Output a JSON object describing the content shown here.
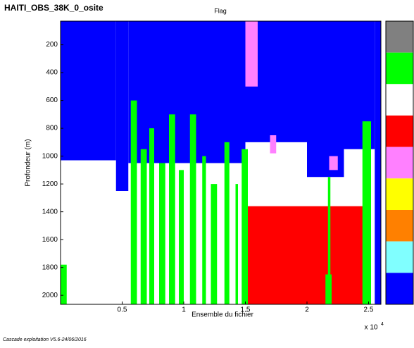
{
  "chart_data": {
    "type": "flag-map",
    "title": "HAITI_OBS_38K_0_osite",
    "subtitle": "Flag",
    "x_label": "Ensemble du fichier",
    "x_multiplier": "x 10",
    "x_multiplier_exponent": "4",
    "y_label": "Profondeur (m)",
    "footer": "Cascade exploitation V5.6-24/06/2016",
    "xlim": [
      0,
      2.6
    ],
    "xticks": [
      0.5,
      1,
      1.5,
      2,
      2.5
    ],
    "ylim": [
      30,
      2065
    ],
    "y_inverted": true,
    "yticks": [
      200,
      400,
      600,
      800,
      1000,
      1200,
      1400,
      1600,
      1800,
      2000
    ],
    "colorbar": [
      "#808080",
      "#00ff00",
      "#ffffff",
      "#ff0000",
      "#ff80ff",
      "#ffff00",
      "#ff8000",
      "#80ffff",
      "#0000ff"
    ],
    "regions": [
      {
        "color": "#0000ff",
        "x": [
          0,
          0.45
        ],
        "depth": [
          30,
          1030
        ]
      },
      {
        "color": "#0000ff",
        "x": [
          0.45,
          0.55
        ],
        "depth": [
          30,
          1250
        ]
      },
      {
        "color": "#0000ff",
        "x": [
          0.55,
          1.5
        ],
        "depth": [
          30,
          1050
        ]
      },
      {
        "color": "#0000ff",
        "x": [
          1.5,
          2.0
        ],
        "depth": [
          30,
          900
        ]
      },
      {
        "color": "#0000ff",
        "x": [
          2.0,
          2.3
        ],
        "depth": [
          30,
          1150
        ]
      },
      {
        "color": "#0000ff",
        "x": [
          2.3,
          2.55
        ],
        "depth": [
          30,
          950
        ]
      },
      {
        "color": "#ff80ff",
        "x": [
          1.5,
          1.6
        ],
        "depth": [
          30,
          500
        ]
      },
      {
        "color": "#ff80ff",
        "x": [
          2.18,
          2.25
        ],
        "depth": [
          1000,
          1100
        ]
      },
      {
        "color": "#ff80ff",
        "x": [
          1.7,
          1.75
        ],
        "depth": [
          850,
          980
        ]
      },
      {
        "color": "#ff0000",
        "x": [
          1.5,
          2.47
        ],
        "depth": [
          1360,
          2065
        ]
      },
      {
        "color": "#00ff00",
        "x": [
          0,
          0.05
        ],
        "depth": [
          1780,
          2065
        ]
      },
      {
        "color": "#00ff00",
        "x": [
          0.57,
          0.62
        ],
        "depth": [
          600,
          2065
        ]
      },
      {
        "color": "#00ff00",
        "x": [
          0.65,
          0.7
        ],
        "depth": [
          950,
          2065
        ]
      },
      {
        "color": "#00ff00",
        "x": [
          0.72,
          0.76
        ],
        "depth": [
          800,
          2065
        ]
      },
      {
        "color": "#00ff00",
        "x": [
          0.8,
          0.85
        ],
        "depth": [
          1050,
          2065
        ]
      },
      {
        "color": "#00ff00",
        "x": [
          0.88,
          0.93
        ],
        "depth": [
          700,
          2065
        ]
      },
      {
        "color": "#00ff00",
        "x": [
          0.96,
          1.0
        ],
        "depth": [
          1100,
          2065
        ]
      },
      {
        "color": "#00ff00",
        "x": [
          1.05,
          1.1
        ],
        "depth": [
          700,
          2065
        ]
      },
      {
        "color": "#00ff00",
        "x": [
          1.15,
          1.18
        ],
        "depth": [
          1000,
          2065
        ]
      },
      {
        "color": "#00ff00",
        "x": [
          1.22,
          1.27
        ],
        "depth": [
          1200,
          2065
        ]
      },
      {
        "color": "#00ff00",
        "x": [
          1.33,
          1.37
        ],
        "depth": [
          900,
          2065
        ]
      },
      {
        "color": "#00ff00",
        "x": [
          1.42,
          1.44
        ],
        "depth": [
          1200,
          2065
        ]
      },
      {
        "color": "#00ff00",
        "x": [
          1.47,
          1.52
        ],
        "depth": [
          950,
          2065
        ]
      },
      {
        "color": "#00ff00",
        "x": [
          2.17,
          2.19
        ],
        "depth": [
          1150,
          1900
        ]
      },
      {
        "color": "#00ff00",
        "x": [
          2.15,
          2.2
        ],
        "depth": [
          1850,
          2065
        ]
      },
      {
        "color": "#00ff00",
        "x": [
          2.45,
          2.52
        ],
        "depth": [
          750,
          2065
        ]
      },
      {
        "color": "#0000ff",
        "x": [
          2.55,
          2.6
        ],
        "depth": [
          30,
          2065
        ]
      }
    ]
  }
}
